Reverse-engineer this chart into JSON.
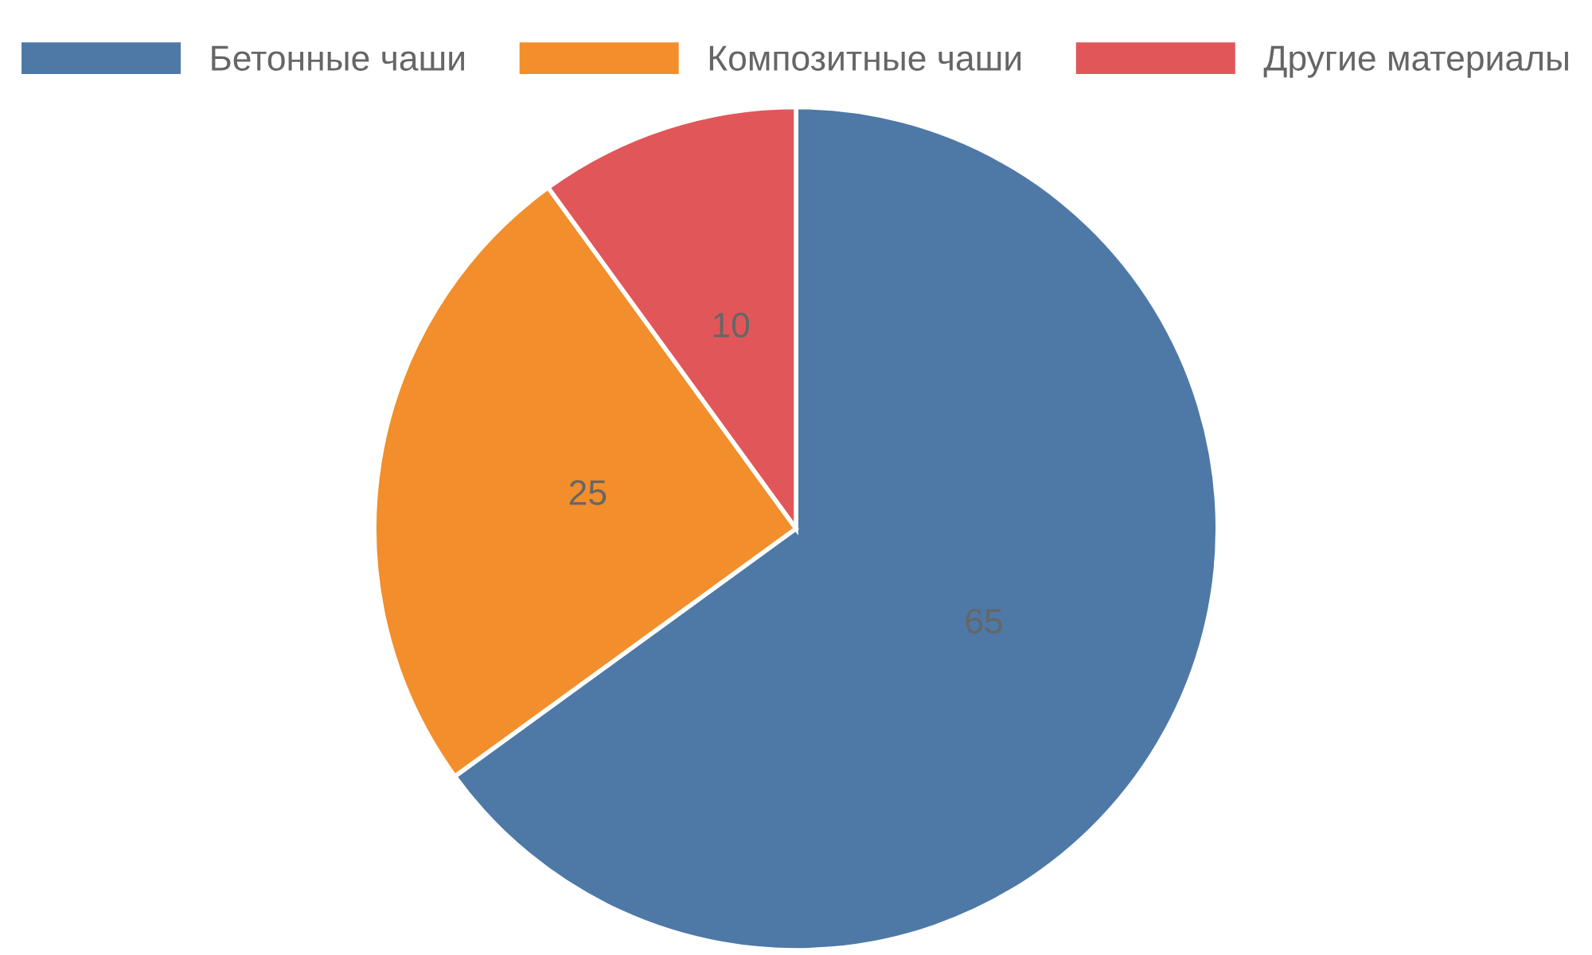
{
  "chart_data": {
    "type": "pie",
    "categories": [
      "Бетонные чаши",
      "Композитные чаши",
      "Другие материалы"
    ],
    "values": [
      65,
      25,
      10
    ],
    "colors": [
      "#4e79a7",
      "#f28e2b",
      "#e15759"
    ],
    "data_labels": true,
    "legend": "top"
  }
}
